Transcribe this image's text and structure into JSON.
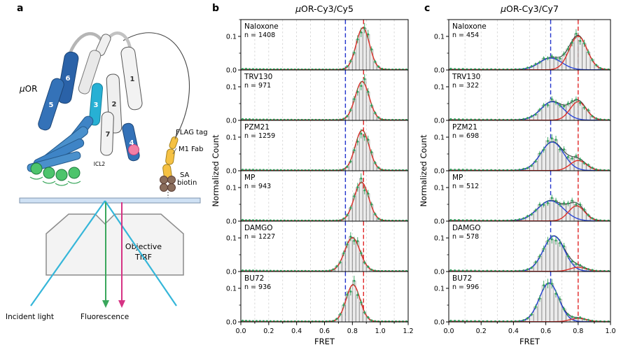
{
  "panels": {
    "a": "a",
    "b": "b",
    "c": "c"
  },
  "diagram": {
    "receptor_label_mu": "μ",
    "receptor_label_rest": "OR",
    "helix_numbers": [
      "1",
      "2",
      "3",
      "4",
      "5",
      "6",
      "7"
    ],
    "icl2_label": "ICL2",
    "flag_tag_label": "FLAG tag",
    "m1_fab_label": "M1 Fab",
    "sa_label": "SA",
    "biotin_label": "biotin",
    "objective_label": "Objective",
    "tirf_label": "TIRF",
    "incident_light_label": "Incident light",
    "fluorescence_label": "Fluorescence"
  },
  "colors": {
    "bar_fill": "#ebebeb",
    "bar_stroke": "#7d7d7d",
    "marker_green": "#2fa05a",
    "total_fit": "#2b2b2b",
    "gridline": "#c9c9c9",
    "vline_blue": "#2233cc",
    "vline_red": "#e02525"
  },
  "chart_data": [
    {
      "type": "histogram",
      "panel": "b",
      "title_italic": "μ",
      "title": "OR-Cy3/Cy5",
      "xlabel": "FRET",
      "ylabel": "Normalized Count",
      "xlim": [
        0,
        1.2
      ],
      "ylim": [
        0,
        0.15
      ],
      "xticks": [
        0.0,
        0.2,
        0.4,
        0.6,
        0.8,
        1.0,
        1.2
      ],
      "yticks": [
        0.0,
        0.1
      ],
      "bin_width": 0.025,
      "gridline_step": 0.1,
      "grid": true,
      "legend": "none",
      "vlines": [
        {
          "x": 0.75,
          "color": "#2233cc"
        },
        {
          "x": 0.88,
          "color": "#e02525"
        }
      ],
      "subplots": [
        {
          "label": "Naloxone",
          "n_label": "n = 1408",
          "components": [
            {
              "color": "#e0312a",
              "mu": 0.875,
              "sigma": 0.048,
              "amp": 0.125
            }
          ]
        },
        {
          "label": "TRV130",
          "n_label": "n = 971",
          "components": [
            {
              "color": "#e0312a",
              "mu": 0.87,
              "sigma": 0.05,
              "amp": 0.115
            }
          ]
        },
        {
          "label": "PZM21",
          "n_label": "n = 1259",
          "components": [
            {
              "color": "#e0312a",
              "mu": 0.87,
              "sigma": 0.05,
              "amp": 0.12
            }
          ]
        },
        {
          "label": "MP",
          "n_label": "n = 943",
          "components": [
            {
              "color": "#e0312a",
              "mu": 0.865,
              "sigma": 0.052,
              "amp": 0.115
            }
          ]
        },
        {
          "label": "DAMGO",
          "n_label": "n = 1227",
          "components": [
            {
              "color": "#e0312a",
              "mu": 0.8,
              "sigma": 0.055,
              "amp": 0.1
            }
          ]
        },
        {
          "label": "BU72",
          "n_label": "n = 936",
          "components": [
            {
              "color": "#e0312a",
              "mu": 0.805,
              "sigma": 0.05,
              "amp": 0.11
            }
          ]
        }
      ]
    },
    {
      "type": "histogram",
      "panel": "c",
      "title_italic": "μ",
      "title": "OR-Cy3/Cy7",
      "xlabel": "FRET",
      "ylabel": "Normalized Count",
      "xlim": [
        0,
        1.0
      ],
      "ylim": [
        0,
        0.15
      ],
      "xticks": [
        0.0,
        0.2,
        0.4,
        0.6,
        0.8,
        1.0
      ],
      "yticks": [
        0.0,
        0.1
      ],
      "bin_width": 0.025,
      "gridline_step": 0.1,
      "grid": true,
      "legend": "none",
      "vlines": [
        {
          "x": 0.63,
          "color": "#2233cc"
        },
        {
          "x": 0.8,
          "color": "#e02525"
        }
      ],
      "subplots": [
        {
          "label": "Naloxone",
          "n_label": "n = 454",
          "components": [
            {
              "color": "#2a46d8",
              "mu": 0.63,
              "sigma": 0.07,
              "amp": 0.035
            },
            {
              "color": "#e0312a",
              "mu": 0.8,
              "sigma": 0.055,
              "amp": 0.1
            }
          ]
        },
        {
          "label": "TRV130",
          "n_label": "n = 322",
          "components": [
            {
              "color": "#2a46d8",
              "mu": 0.64,
              "sigma": 0.07,
              "amp": 0.055
            },
            {
              "color": "#e0312a",
              "mu": 0.8,
              "sigma": 0.05,
              "amp": 0.055
            }
          ]
        },
        {
          "label": "PZM21",
          "n_label": "n = 698",
          "components": [
            {
              "color": "#2a46d8",
              "mu": 0.64,
              "sigma": 0.07,
              "amp": 0.085
            },
            {
              "color": "#e0312a",
              "mu": 0.8,
              "sigma": 0.05,
              "amp": 0.03
            }
          ]
        },
        {
          "label": "MP",
          "n_label": "n = 512",
          "components": [
            {
              "color": "#2a46d8",
              "mu": 0.63,
              "sigma": 0.08,
              "amp": 0.06
            },
            {
              "color": "#e0312a",
              "mu": 0.79,
              "sigma": 0.05,
              "amp": 0.045
            }
          ]
        },
        {
          "label": "DAMGO",
          "n_label": "n = 578",
          "components": [
            {
              "color": "#2a46d8",
              "mu": 0.65,
              "sigma": 0.065,
              "amp": 0.105
            },
            {
              "color": "#e0312a",
              "mu": 0.8,
              "sigma": 0.05,
              "amp": 0.012
            }
          ]
        },
        {
          "label": "BU72",
          "n_label": "n = 996",
          "components": [
            {
              "color": "#2a46d8",
              "mu": 0.62,
              "sigma": 0.06,
              "amp": 0.115
            },
            {
              "color": "#e0312a",
              "mu": 0.8,
              "sigma": 0.05,
              "amp": 0.01
            }
          ]
        }
      ]
    }
  ]
}
